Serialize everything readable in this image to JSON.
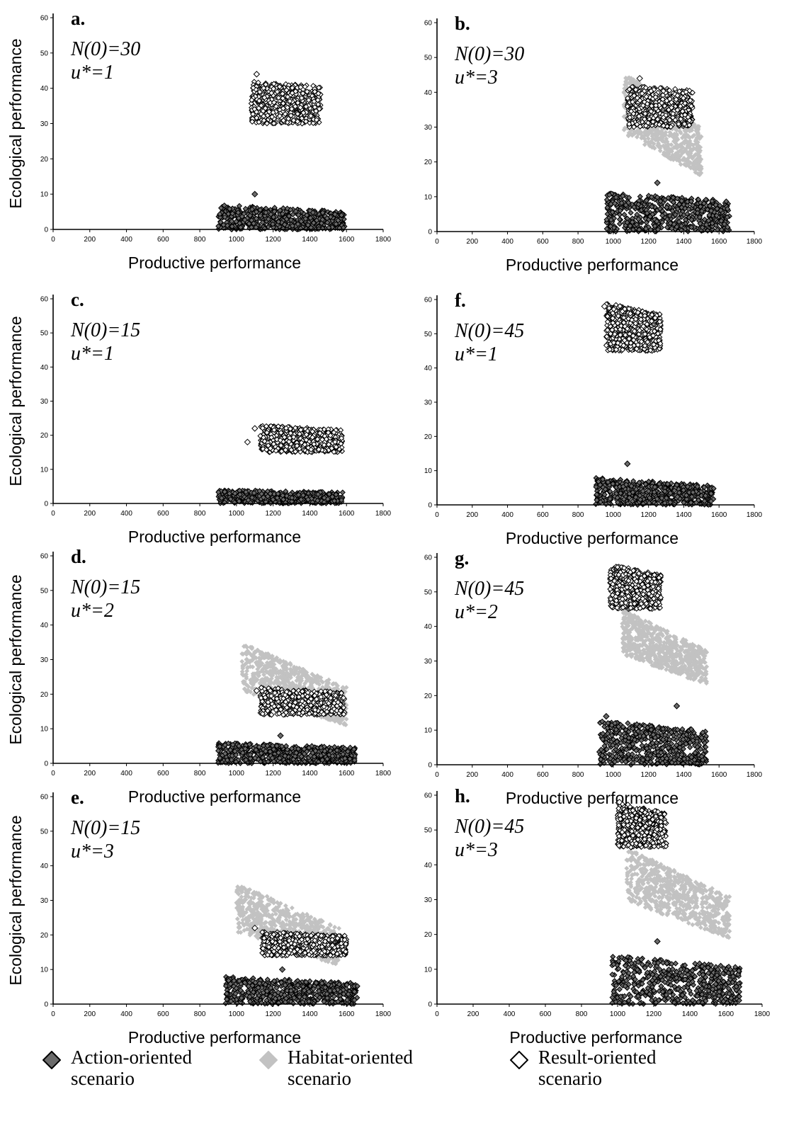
{
  "chart_data": [
    {
      "type": "scatter",
      "panel_label": "a.",
      "annotation": [
        "N(0)=30",
        "u*=1"
      ],
      "xlabel": "Productive performance",
      "ylabel": "Ecological performance",
      "xlim": [
        0,
        1800
      ],
      "ylim": [
        0,
        60
      ],
      "xticks": [
        "0",
        "200",
        "400",
        "600",
        "800",
        "1000",
        "1200",
        "1400",
        "1600",
        "1800"
      ],
      "yticks": [
        "0",
        "10",
        "20",
        "30",
        "40",
        "50",
        "60"
      ],
      "clusters": [
        {
          "scenario": "result",
          "x": [
            1080,
            1460
          ],
          "y": [
            30,
            42
          ],
          "slope": 0.2
        },
        {
          "scenario": "action",
          "x": [
            900,
            1590
          ],
          "y": [
            0,
            7
          ],
          "slope": 0.45
        }
      ],
      "outliers": [
        {
          "scenario": "result",
          "x": 1110,
          "y": 44
        },
        {
          "scenario": "action",
          "x": 1100,
          "y": 10
        }
      ]
    },
    {
      "type": "scatter",
      "panel_label": "b.",
      "annotation": [
        "N(0)=30",
        "u*=3"
      ],
      "xlabel": "Productive performance",
      "ylabel": "",
      "xlim": [
        0,
        1800
      ],
      "ylim": [
        0,
        60
      ],
      "xticks": [
        "0",
        "200",
        "400",
        "600",
        "800",
        "1000",
        "1200",
        "1400",
        "1600",
        "1800"
      ],
      "yticks": [
        "0",
        "10",
        "20",
        "30",
        "40",
        "50",
        "60"
      ],
      "clusters": [
        {
          "scenario": "habitat",
          "x": [
            1060,
            1500
          ],
          "y": [
            16,
            46
          ],
          "slope": 0.9
        },
        {
          "scenario": "result",
          "x": [
            1080,
            1450
          ],
          "y": [
            30,
            42
          ],
          "slope": 0.2
        },
        {
          "scenario": "action",
          "x": [
            960,
            1660
          ],
          "y": [
            0,
            11
          ],
          "slope": 0.3
        }
      ],
      "outliers": [
        {
          "scenario": "result",
          "x": 1150,
          "y": 44
        },
        {
          "scenario": "action",
          "x": 1250,
          "y": 14
        }
      ]
    },
    {
      "type": "scatter",
      "panel_label": "c.",
      "annotation": [
        "N(0)=15",
        "u*=1"
      ],
      "xlabel": "Productive performance",
      "ylabel": "Ecological performance",
      "xlim": [
        0,
        1800
      ],
      "ylim": [
        0,
        60
      ],
      "xticks": [
        "0",
        "200",
        "400",
        "600",
        "800",
        "1000",
        "1200",
        "1400",
        "1600",
        "1800"
      ],
      "yticks": [
        "0",
        "10",
        "20",
        "30",
        "40",
        "50",
        "60"
      ],
      "clusters": [
        {
          "scenario": "result",
          "x": [
            1130,
            1580
          ],
          "y": [
            15,
            23
          ],
          "slope": 0.3
        },
        {
          "scenario": "action",
          "x": [
            900,
            1580
          ],
          "y": [
            0,
            4
          ],
          "slope": 0.3
        }
      ],
      "outliers": [
        {
          "scenario": "result",
          "x": 1100,
          "y": 22
        },
        {
          "scenario": "result",
          "x": 1060,
          "y": 18
        }
      ]
    },
    {
      "type": "scatter",
      "panel_label": "f.",
      "annotation": [
        "N(0)=45",
        "u*=1"
      ],
      "xlabel": "Productive performance",
      "ylabel": "",
      "xlim": [
        0,
        1800
      ],
      "ylim": [
        0,
        60
      ],
      "xticks": [
        "0",
        "200",
        "400",
        "600",
        "800",
        "1000",
        "1200",
        "1400",
        "1600",
        "1800"
      ],
      "yticks": [
        "0",
        "10",
        "20",
        "30",
        "40",
        "50",
        "60"
      ],
      "clusters": [
        {
          "scenario": "result",
          "x": [
            960,
            1270
          ],
          "y": [
            45,
            59
          ],
          "slope": 0.4
        },
        {
          "scenario": "action",
          "x": [
            900,
            1570
          ],
          "y": [
            0,
            8
          ],
          "slope": 0.5
        }
      ],
      "outliers": [
        {
          "scenario": "result",
          "x": 950,
          "y": 58
        },
        {
          "scenario": "action",
          "x": 1080,
          "y": 12
        }
      ]
    },
    {
      "type": "scatter",
      "panel_label": "d.",
      "annotation": [
        "N(0)=15",
        "u*=2"
      ],
      "xlabel": "Productive performance",
      "ylabel": "Ecological performance",
      "xlim": [
        0,
        1800
      ],
      "ylim": [
        0,
        60
      ],
      "xticks": [
        "0",
        "200",
        "400",
        "600",
        "800",
        "1000",
        "1200",
        "1400",
        "1600",
        "1800"
      ],
      "yticks": [
        "0",
        "10",
        "20",
        "30",
        "40",
        "50",
        "60"
      ],
      "clusters": [
        {
          "scenario": "habitat",
          "x": [
            1030,
            1600
          ],
          "y": [
            11,
            35
          ],
          "slope": 0.9
        },
        {
          "scenario": "result",
          "x": [
            1130,
            1590
          ],
          "y": [
            14,
            22
          ],
          "slope": 0.3
        },
        {
          "scenario": "action",
          "x": [
            900,
            1650
          ],
          "y": [
            0,
            6
          ],
          "slope": 0.4
        }
      ],
      "outliers": [
        {
          "scenario": "result",
          "x": 1110,
          "y": 21
        },
        {
          "scenario": "action",
          "x": 1240,
          "y": 8
        }
      ]
    },
    {
      "type": "scatter",
      "panel_label": "g.",
      "annotation": [
        "N(0)=45",
        "u*=2"
      ],
      "xlabel": "Productive performance",
      "ylabel": "",
      "xlim": [
        0,
        1800
      ],
      "ylim": [
        0,
        60
      ],
      "xticks": [
        "0",
        "200",
        "400",
        "600",
        "800",
        "1000",
        "1200",
        "1400",
        "1600",
        "1800"
      ],
      "yticks": [
        "0",
        "10",
        "20",
        "30",
        "40",
        "50",
        "60"
      ],
      "clusters": [
        {
          "scenario": "habitat",
          "x": [
            1050,
            1530
          ],
          "y": [
            23,
            45
          ],
          "slope": 0.9
        },
        {
          "scenario": "result",
          "x": [
            980,
            1270
          ],
          "y": [
            45,
            58
          ],
          "slope": 0.4
        },
        {
          "scenario": "action",
          "x": [
            920,
            1530
          ],
          "y": [
            0,
            13
          ],
          "slope": 0.4
        }
      ],
      "outliers": [
        {
          "scenario": "action",
          "x": 960,
          "y": 14
        },
        {
          "scenario": "action",
          "x": 1360,
          "y": 17
        }
      ]
    },
    {
      "type": "scatter",
      "panel_label": "e.",
      "annotation": [
        "N(0)=15",
        "u*=3"
      ],
      "xlabel": "Productive performance",
      "ylabel": "Ecological performance",
      "xlim": [
        0,
        1800
      ],
      "ylim": [
        0,
        60
      ],
      "xticks": [
        "0",
        "200",
        "400",
        "600",
        "800",
        "1000",
        "1200",
        "1400",
        "1600",
        "1800"
      ],
      "yticks": [
        "0",
        "10",
        "20",
        "30",
        "40",
        "50",
        "60"
      ],
      "clusters": [
        {
          "scenario": "habitat",
          "x": [
            1000,
            1560
          ],
          "y": [
            11,
            35
          ],
          "slope": 0.9
        },
        {
          "scenario": "result",
          "x": [
            1140,
            1600
          ],
          "y": [
            14,
            21
          ],
          "slope": 0.3
        },
        {
          "scenario": "action",
          "x": [
            940,
            1660
          ],
          "y": [
            0,
            8
          ],
          "slope": 0.4
        }
      ],
      "outliers": [
        {
          "scenario": "result",
          "x": 1100,
          "y": 22
        },
        {
          "scenario": "action",
          "x": 1250,
          "y": 10
        }
      ]
    },
    {
      "type": "scatter",
      "panel_label": "h.",
      "annotation": [
        "N(0)=45",
        "u*=3"
      ],
      "xlabel": "Productive performance",
      "ylabel": "",
      "xlim": [
        0,
        1800
      ],
      "ylim": [
        0,
        60
      ],
      "xticks": [
        "0",
        "200",
        "400",
        "600",
        "800",
        "1000",
        "1200",
        "1400",
        "1600",
        "1800"
      ],
      "yticks": [
        "0",
        "10",
        "20",
        "30",
        "40",
        "50",
        "60"
      ],
      "clusters": [
        {
          "scenario": "habitat",
          "x": [
            1050,
            1620
          ],
          "y": [
            19,
            45
          ],
          "slope": 0.9
        },
        {
          "scenario": "result",
          "x": [
            1000,
            1270
          ],
          "y": [
            45,
            58
          ],
          "slope": 0.4
        },
        {
          "scenario": "action",
          "x": [
            970,
            1680
          ],
          "y": [
            0,
            14
          ],
          "slope": 0.4
        }
      ],
      "outliers": [
        {
          "scenario": "result",
          "x": 1010,
          "y": 58
        },
        {
          "scenario": "action",
          "x": 1220,
          "y": 18
        }
      ]
    }
  ],
  "legend": {
    "items": [
      {
        "key": "action",
        "text1": "Action-oriented",
        "text2": "scenario"
      },
      {
        "key": "habitat",
        "text1": "Habitat-oriented",
        "text2": "scenario"
      },
      {
        "key": "result",
        "text1": "Result-oriented",
        "text2": "scenario"
      }
    ]
  },
  "colors": {
    "action": "#6b6b6b",
    "habitat": "#c2c2c2",
    "result": "#ffffff",
    "axis": "#000000"
  }
}
